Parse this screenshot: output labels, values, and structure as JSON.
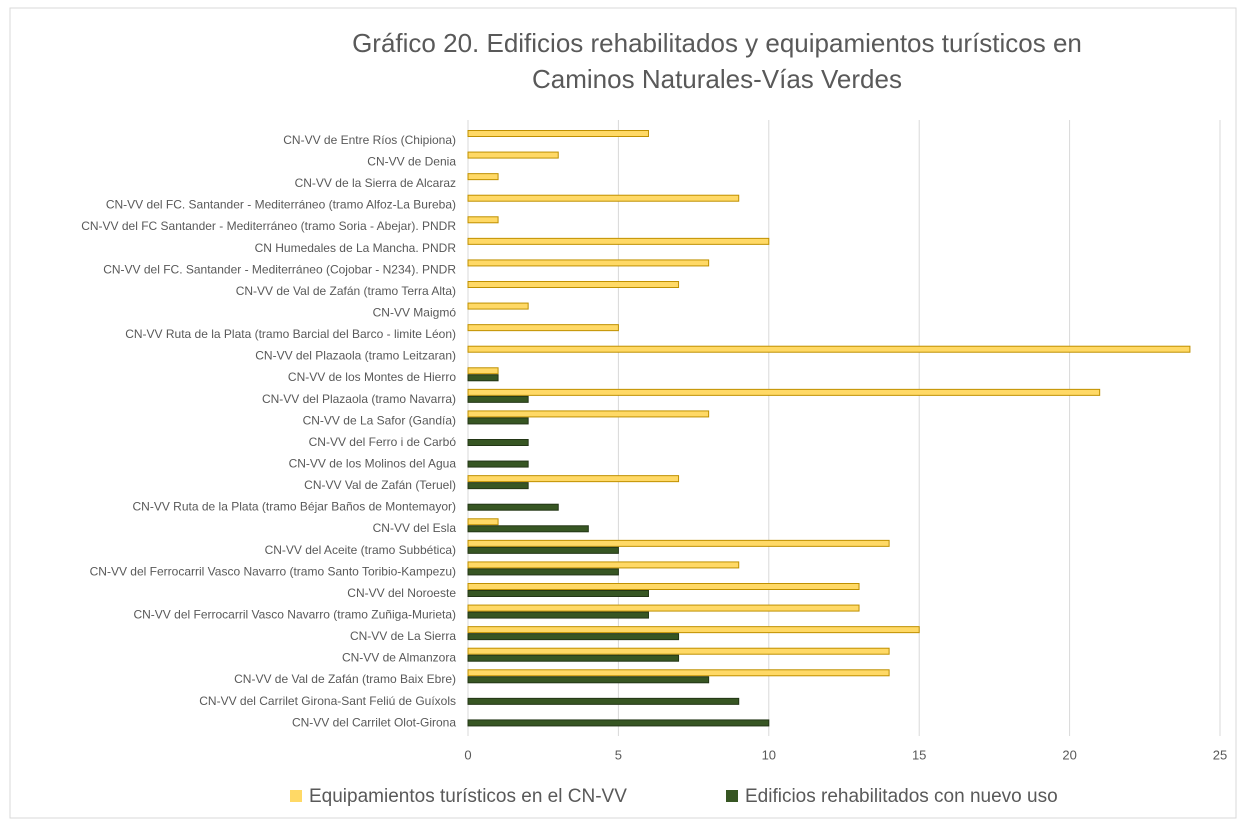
{
  "chart_data": {
    "type": "barh",
    "title": [
      "Gráfico 20. Edificios rehabilitados y equipamientos turísticos en",
      "Caminos Naturales-Vías Verdes"
    ],
    "categories": [
      "CN-VV de Entre Ríos (Chipiona)",
      "CN-VV de Denia",
      "CN-VV de la Sierra de Alcaraz",
      "CN-VV del FC. Santander - Mediterráneo (tramo Alfoz-La Bureba)",
      "CN-VV del FC Santander - Mediterráneo (tramo Soria - Abejar). PNDR",
      "CN Humedales de La Mancha. PNDR",
      "CN-VV del FC. Santander - Mediterráneo (Cojobar - N234). PNDR",
      "CN-VV de Val de Zafán (tramo Terra Alta)",
      "CN-VV Maigmó",
      "CN-VV Ruta de la Plata (tramo Barcial del Barco - limite Léon)",
      "CN-VV del Plazaola (tramo Leitzaran)",
      "CN-VV de los Montes de Hierro",
      "CN-VV del Plazaola (tramo Navarra)",
      "CN-VV de La Safor (Gandía)",
      "CN-VV del Ferro i de Carbó",
      "CN-VV de los Molinos del Agua",
      "CN-VV Val de Zafán (Teruel)",
      "CN-VV Ruta de la Plata (tramo Béjar Baños de Montemayor)",
      "CN-VV del Esla",
      "CN-VV del Aceite (tramo Subbética)",
      "CN-VV del Ferrocarril Vasco Navarro (tramo Santo Toribio-Kampezu)",
      "CN-VV del Noroeste",
      "CN-VV del Ferrocarril Vasco Navarro (tramo Zuñiga-Murieta)",
      "CN-VV de La Sierra",
      "CN-VV de Almanzora",
      "CN-VV de Val de Zafán (tramo Baix Ebre)",
      "CN-VV del Carrilet Girona-Sant Feliú de Guíxols",
      "CN-VV del Carrilet Olot-Girona"
    ],
    "series": [
      {
        "name": "Equipamientos turísticos en el CN-VV",
        "color": "#ffd966",
        "values": [
          6,
          3,
          1,
          9,
          1,
          10,
          8,
          7,
          2,
          5,
          24,
          1,
          21,
          8,
          0,
          0,
          7,
          0,
          1,
          14,
          9,
          13,
          13,
          15,
          14,
          14,
          0,
          0
        ]
      },
      {
        "name": "Edificios rehabilitados con nuevo uso",
        "color": "#375623",
        "values": [
          0,
          0,
          0,
          0,
          0,
          0,
          0,
          0,
          0,
          0,
          0,
          1,
          2,
          2,
          2,
          2,
          2,
          3,
          4,
          5,
          5,
          6,
          6,
          7,
          7,
          8,
          9,
          10
        ]
      }
    ],
    "xlim": [
      0,
      25
    ],
    "xticks": [
      0,
      5,
      10,
      15,
      20,
      25
    ],
    "grid": true,
    "legend": "bottom"
  }
}
